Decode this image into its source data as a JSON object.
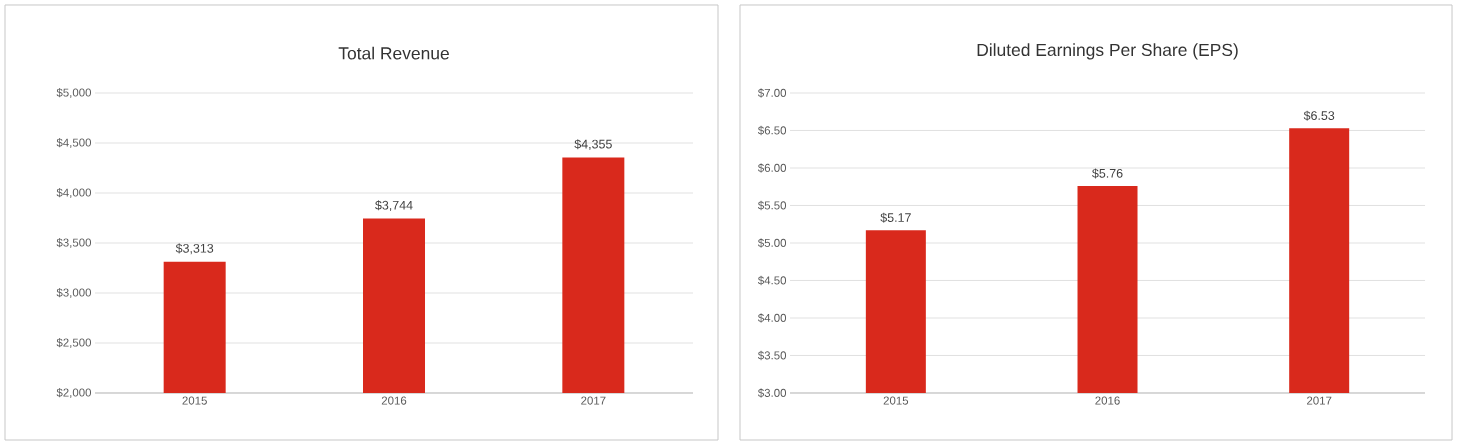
{
  "chart_data": [
    {
      "type": "bar",
      "title": "Total Revenue",
      "categories": [
        "2015",
        "2016",
        "2017"
      ],
      "values": [
        3313,
        3744,
        4355
      ],
      "value_labels": [
        "$3,313",
        "$3,744",
        "$4,355"
      ],
      "color": "#d9291c",
      "ylim": [
        2000,
        5000
      ],
      "yticks": [
        {
          "value": 2000,
          "label": "$2,000"
        },
        {
          "value": 2500,
          "label": "$2,500"
        },
        {
          "value": 3000,
          "label": "$3,000"
        },
        {
          "value": 3500,
          "label": "$3,500"
        },
        {
          "value": 4000,
          "label": "$4,000"
        },
        {
          "value": 4500,
          "label": "$4,500"
        },
        {
          "value": 5000,
          "label": "$5,000"
        }
      ],
      "grid": "y"
    },
    {
      "type": "bar",
      "title": "Diluted Earnings Per Share (EPS)",
      "categories": [
        "2015",
        "2016",
        "2017"
      ],
      "values": [
        5.17,
        5.76,
        6.53
      ],
      "value_labels": [
        "$5.17",
        "$5.76",
        "$6.53"
      ],
      "color": "#d9291c",
      "ylim": [
        3,
        7
      ],
      "yticks": [
        {
          "value": 3,
          "label": "$3.00"
        },
        {
          "value": 3.5,
          "label": "$3.50"
        },
        {
          "value": 4,
          "label": "$4.00"
        },
        {
          "value": 4.5,
          "label": "$4.50"
        },
        {
          "value": 5,
          "label": "$5.00"
        },
        {
          "value": 5.5,
          "label": "$5.50"
        },
        {
          "value": 6,
          "label": "$6.00"
        },
        {
          "value": 6.5,
          "label": "$6.50"
        },
        {
          "value": 7,
          "label": "$7.00"
        }
      ],
      "grid": "y"
    }
  ]
}
